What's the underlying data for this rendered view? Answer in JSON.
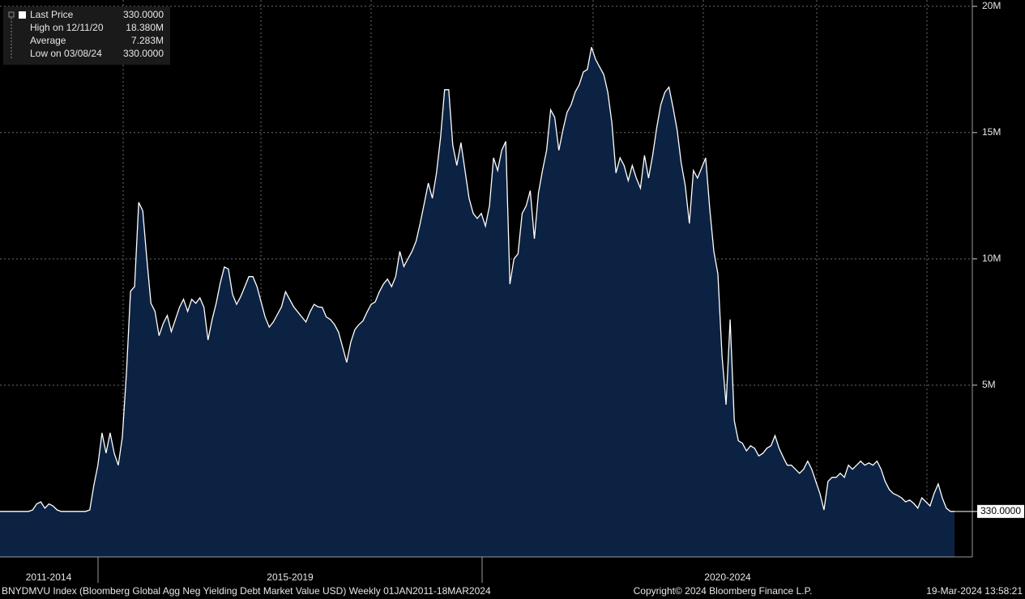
{
  "chart_data": {
    "type": "area",
    "legend": {
      "rows": [
        {
          "label": "Last Price",
          "value": "330.0000"
        },
        {
          "label": "High on 12/11/20",
          "value": "18.380M"
        },
        {
          "label": "Average",
          "value": "7.283M"
        },
        {
          "label": "Low on 03/08/24",
          "value": "330.0000"
        }
      ]
    },
    "period_labels": [
      "2011-2014",
      "2015-2019",
      "2020-2024"
    ],
    "footer": {
      "left": "BNYDMVU Index (Bloomberg Global Agg Neg Yielding Debt Market Value USD)  Weekly 01JAN2011-18MAR2024",
      "center": "Copyright© 2024 Bloomberg Finance L.P.",
      "right": "19-Mar-2024 13:58:21"
    },
    "color": "#0c2242",
    "line_color": "#ffffff",
    "ylim": [
      -1.8,
      20.25
    ],
    "yticks": [
      {
        "value": 5,
        "label": "5M"
      },
      {
        "value": 10,
        "label": "10M"
      },
      {
        "value": 15,
        "label": "15M"
      },
      {
        "value": 20,
        "label": "20M"
      }
    ],
    "grid": true,
    "last_price_marker": {
      "value": 0.00033,
      "label": "330.0000"
    },
    "values": [
      0,
      0,
      0,
      0,
      0,
      0,
      0,
      0,
      0.06,
      0.3,
      0.38,
      0.13,
      0.3,
      0.22,
      0.06,
      0,
      0,
      0,
      0,
      0,
      0,
      0,
      0.06,
      1.03,
      1.83,
      3.11,
      2.31,
      3.11,
      2.3,
      1.83,
      2.95,
      5.5,
      8.72,
      8.9,
      12.24,
      11.9,
      10.0,
      8.24,
      7.92,
      6.96,
      7.44,
      7.76,
      7.12,
      7.6,
      8.08,
      8.4,
      7.92,
      8.4,
      8.24,
      8.46,
      8.08,
      6.79,
      7.6,
      8.24,
      9.04,
      9.68,
      9.6,
      8.6,
      8.2,
      8.5,
      8.9,
      9.3,
      9.3,
      8.9,
      8.3,
      7.7,
      7.3,
      7.5,
      7.8,
      8.1,
      8.7,
      8.4,
      8.1,
      7.9,
      7.7,
      7.5,
      7.9,
      8.2,
      8.1,
      8.08,
      7.7,
      7.6,
      7.4,
      7.1,
      6.5,
      5.9,
      6.7,
      7.2,
      7.4,
      7.55,
      7.9,
      8.2,
      8.3,
      8.7,
      9.0,
      9.2,
      8.9,
      9.3,
      10.3,
      9.7,
      10.0,
      10.3,
      10.7,
      11.4,
      12.2,
      13.0,
      12.4,
      13.4,
      14.8,
      16.7,
      16.7,
      14.5,
      13.7,
      14.6,
      13.5,
      12.4,
      11.8,
      11.6,
      11.8,
      11.3,
      12.1,
      14.0,
      13.5,
      14.3,
      14.65,
      9.0,
      10.0,
      10.2,
      11.8,
      12.1,
      12.7,
      10.8,
      12.6,
      13.5,
      14.3,
      15.9,
      15.6,
      14.3,
      15.1,
      15.8,
      16.1,
      16.6,
      16.9,
      17.4,
      17.5,
      18.38,
      17.9,
      17.6,
      17.3,
      16.6,
      15.4,
      13.4,
      14.0,
      13.7,
      13.1,
      13.7,
      13.2,
      12.8,
      14.1,
      13.2,
      14.1,
      15.2,
      16.1,
      16.6,
      16.8,
      16.0,
      15.1,
      13.8,
      12.9,
      11.4,
      13.5,
      13.2,
      13.6,
      14.0,
      12.0,
      10.3,
      9.4,
      6.15,
      4.23,
      7.6,
      3.6,
      2.8,
      2.7,
      2.4,
      2.6,
      2.5,
      2.2,
      2.3,
      2.5,
      2.6,
      3.0,
      2.5,
      2.15,
      1.83,
      1.83,
      1.67,
      1.51,
      1.67,
      1.99,
      1.67,
      1.19,
      0.71,
      0.06,
      1.19,
      1.35,
      1.35,
      1.51,
      1.35,
      1.83,
      1.67,
      1.83,
      1.99,
      1.83,
      1.92,
      1.83,
      1.99,
      1.67,
      1.19,
      0.87,
      0.71,
      0.64,
      0.54,
      0.38,
      0.45,
      0.32,
      0.13,
      0.54,
      0.38,
      0.22,
      0.71,
      1.09,
      0.54,
      0.13,
      0,
      0.00033
    ]
  }
}
